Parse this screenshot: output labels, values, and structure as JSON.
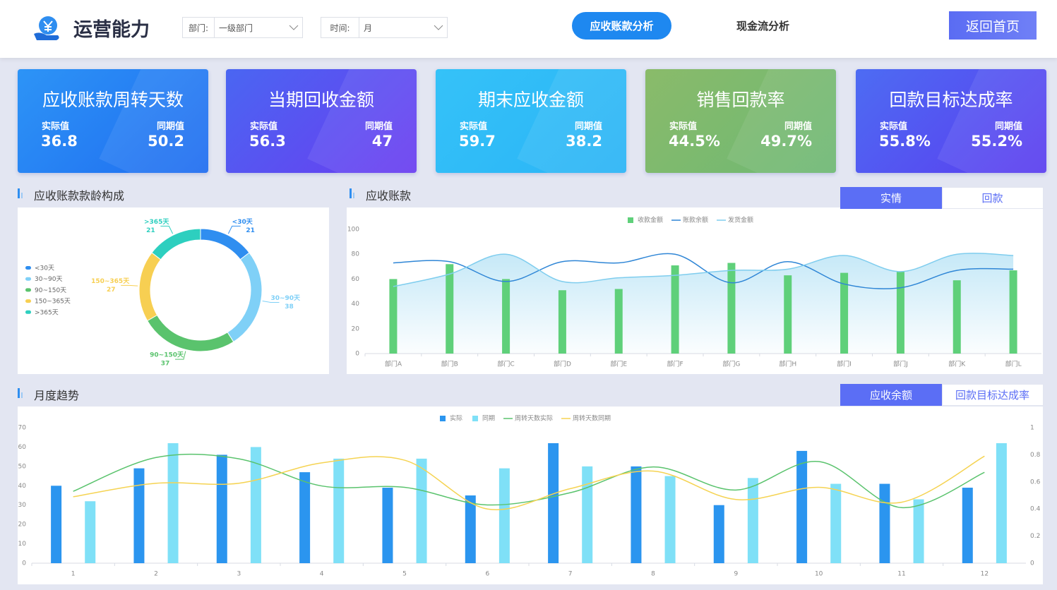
{
  "header": {
    "title": "运营能力",
    "dept_label": "部门:",
    "dept_value": "一级部门",
    "time_label": "时间:",
    "time_value": "月",
    "tabs": [
      "应收账款分析",
      "现金流分析"
    ],
    "home_button": "返回首页"
  },
  "kpis": [
    {
      "title": "应收账款周转天数",
      "actual_label": "实际值",
      "actual": "36.8",
      "prior_label": "同期值",
      "prior": "50.2"
    },
    {
      "title": "当期回收金额",
      "actual_label": "实际值",
      "actual": "56.3",
      "prior_label": "同期值",
      "prior": "47"
    },
    {
      "title": "期末应收金额",
      "actual_label": "实际值",
      "actual": "59.7",
      "prior_label": "同期值",
      "prior": "38.2"
    },
    {
      "title": "销售回款率",
      "actual_label": "实际值",
      "actual": "44.5%",
      "prior_label": "同期值",
      "prior": "49.7%"
    },
    {
      "title": "回款目标达成率",
      "actual_label": "实际值",
      "actual": "55.8%",
      "prior_label": "同期值",
      "prior": "55.2%"
    }
  ],
  "chart_data": [
    {
      "type": "pie",
      "title": "应收账款款龄构成",
      "donut": true,
      "legend": "left",
      "categories": [
        "<30天",
        "30~90天",
        "90~150天",
        "150~365天",
        ">365天"
      ],
      "values": [
        21,
        38,
        37,
        27,
        21
      ],
      "colors": [
        "#2f8ef0",
        "#7fd0f7",
        "#5ac36d",
        "#f7cf52",
        "#2dcfbf"
      ]
    },
    {
      "type": "bar",
      "title": "应收账款",
      "toggles": [
        "实情",
        "回款"
      ],
      "legend": "top",
      "grid": false,
      "categories": [
        "部门A",
        "部门B",
        "部门C",
        "部门D",
        "部门E",
        "部门F",
        "部门G",
        "部门H",
        "部门I",
        "部门J",
        "部门K",
        "部门L"
      ],
      "series": [
        {
          "name": "收款金额",
          "type": "bar",
          "color": "#5fd07a",
          "values": [
            60,
            72,
            60,
            51,
            52,
            71,
            73,
            63,
            65,
            66,
            59,
            67
          ]
        },
        {
          "name": "账款余额",
          "type": "line",
          "color": "#2f86d6",
          "values": [
            73,
            74,
            58,
            74,
            73,
            80,
            57,
            74,
            56,
            53,
            67,
            68
          ]
        },
        {
          "name": "发货金额",
          "type": "area",
          "color": "#7fcdee",
          "values": [
            54,
            64,
            80,
            58,
            61,
            63,
            67,
            68,
            79,
            66,
            80,
            79
          ]
        }
      ],
      "ylim": [
        0,
        100
      ],
      "yticks": [
        0,
        20,
        40,
        60,
        80,
        100
      ]
    },
    {
      "type": "bar",
      "title": "月度趋势",
      "toggles": [
        "应收余额",
        "回款目标达成率"
      ],
      "legend": "top",
      "grid": false,
      "categories": [
        "1",
        "2",
        "3",
        "4",
        "5",
        "6",
        "7",
        "8",
        "9",
        "10",
        "11",
        "12"
      ],
      "series": [
        {
          "name": "实际",
          "type": "bar",
          "color": "#2b95ef",
          "values": [
            40,
            49,
            56,
            47,
            39,
            35,
            62,
            50,
            30,
            58,
            41,
            39
          ]
        },
        {
          "name": "同期",
          "type": "bar",
          "color": "#7fe0f7",
          "values": [
            32,
            62,
            60,
            54,
            54,
            49,
            50,
            45,
            44,
            41,
            33,
            62
          ]
        },
        {
          "name": "周转天数实际",
          "type": "line",
          "axis": "y2",
          "color": "#5ac36d",
          "values": [
            0.53,
            0.78,
            0.77,
            0.57,
            0.56,
            0.43,
            0.52,
            0.71,
            0.54,
            0.75,
            0.41,
            0.67
          ]
        },
        {
          "name": "周转天数同期",
          "type": "line",
          "axis": "y2",
          "color": "#f5d352",
          "values": [
            0.49,
            0.59,
            0.59,
            0.74,
            0.76,
            0.4,
            0.55,
            0.68,
            0.47,
            0.56,
            0.45,
            0.79
          ]
        }
      ],
      "ylim": [
        0,
        70
      ],
      "yticks": [
        0,
        10,
        20,
        30,
        40,
        50,
        60,
        70
      ],
      "y2lim": [
        0,
        1
      ],
      "y2ticks": [
        0,
        0.2,
        0.4,
        0.6,
        0.8,
        1
      ]
    }
  ]
}
